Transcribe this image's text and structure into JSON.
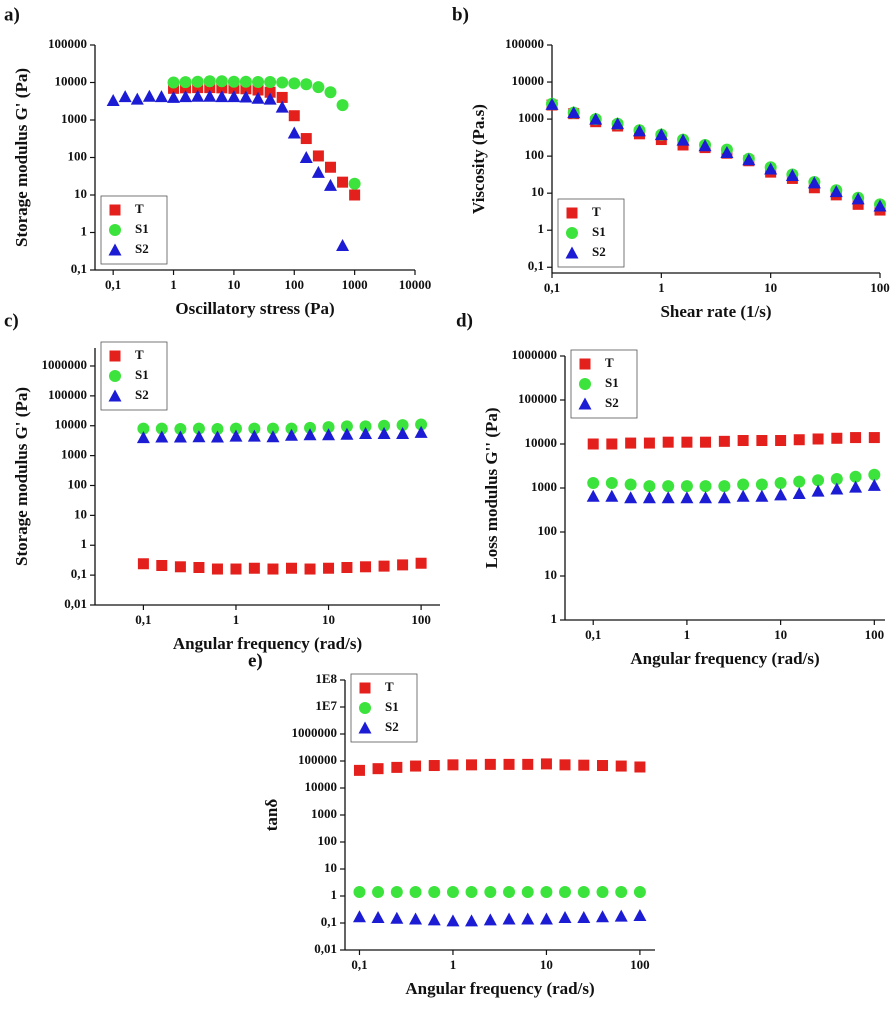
{
  "chart_data": [
    {
      "type": "scatter",
      "panel_label": "a)",
      "xlabel": "Oscillatory stress (Pa)",
      "ylabel": "Storage modulus G' (Pa)",
      "log_x": true,
      "log_y": true,
      "legend": "lower-left",
      "xlim": [
        0.05,
        10000
      ],
      "ylim": [
        0.1,
        100000
      ],
      "xticks": [
        {
          "value": 0.1,
          "label": "0,1"
        },
        1,
        10,
        100,
        1000,
        10000
      ],
      "yticks": [
        {
          "value": 0.1,
          "label": "0,1"
        },
        1,
        10,
        100,
        1000,
        10000,
        100000
      ],
      "series": [
        {
          "name": "T",
          "color": "#e3201c",
          "marker": "square",
          "x": [
            1,
            1.58,
            2.51,
            3.98,
            6.31,
            10,
            15.8,
            25.1,
            39.8,
            63.1,
            100,
            158,
            251,
            398,
            631,
            1000
          ],
          "values": [
            7000,
            7200,
            7300,
            7300,
            7200,
            7000,
            6800,
            6300,
            5500,
            4000,
            1300,
            320,
            110,
            55,
            22,
            10
          ]
        },
        {
          "name": "S1",
          "color": "#3ce33c",
          "marker": "circle",
          "x": [
            1,
            1.58,
            2.51,
            3.98,
            6.31,
            10,
            15.8,
            25.1,
            39.8,
            63.1,
            100,
            158,
            251,
            398,
            631,
            1000
          ],
          "values": [
            10000,
            10200,
            10500,
            10800,
            10800,
            10500,
            10500,
            10300,
            10300,
            10000,
            9500,
            9000,
            7500,
            5500,
            2500,
            20
          ]
        },
        {
          "name": "S2",
          "color": "#1c1cd4",
          "marker": "triangle",
          "x": [
            0.1,
            0.158,
            0.251,
            0.398,
            0.631,
            1,
            1.58,
            2.51,
            3.98,
            6.31,
            10,
            15.8,
            25.1,
            39.8,
            63.1,
            100,
            158,
            251,
            398,
            631
          ],
          "values": [
            3300,
            4200,
            3600,
            4300,
            4200,
            4000,
            4200,
            4300,
            4300,
            4200,
            4200,
            4100,
            3800,
            3600,
            2200,
            450,
            100,
            40,
            18,
            0.45
          ]
        }
      ]
    },
    {
      "type": "scatter",
      "panel_label": "b)",
      "xlabel": "Shear rate (1/s)",
      "ylabel": "Viscosity (Pa.s)",
      "log_x": true,
      "log_y": true,
      "legend": "lower-left",
      "xlim": [
        0.1,
        100
      ],
      "ylim": [
        0.07,
        100000
      ],
      "xticks": [
        {
          "value": 0.1,
          "label": "0,1"
        },
        1,
        10,
        100
      ],
      "yticks": [
        {
          "value": 0.1,
          "label": "0,1"
        },
        1,
        10,
        100,
        1000,
        10000,
        100000
      ],
      "series": [
        {
          "name": "T",
          "color": "#e3201c",
          "marker": "square",
          "x": [
            0.1,
            0.158,
            0.251,
            0.398,
            0.631,
            1,
            1.58,
            2.51,
            3.98,
            6.31,
            10,
            15.8,
            25.1,
            39.8,
            63.1,
            100
          ],
          "values": [
            2400,
            1400,
            850,
            650,
            400,
            280,
            200,
            170,
            120,
            75,
            37,
            25,
            14,
            9,
            5,
            3.5
          ]
        },
        {
          "name": "S1",
          "color": "#3ce33c",
          "marker": "circle",
          "x": [
            0.1,
            0.158,
            0.251,
            0.398,
            0.631,
            1,
            1.58,
            2.51,
            3.98,
            6.31,
            10,
            15.8,
            25.1,
            39.8,
            63.1,
            100
          ],
          "values": [
            2600,
            1500,
            1000,
            750,
            500,
            380,
            280,
            200,
            150,
            85,
            50,
            32,
            20,
            12,
            7.5,
            5
          ]
        },
        {
          "name": "S2",
          "color": "#1c1cd4",
          "marker": "triangle",
          "x": [
            0.1,
            0.158,
            0.251,
            0.398,
            0.631,
            1,
            1.58,
            2.51,
            3.98,
            6.31,
            10,
            15.8,
            25.1,
            39.8,
            63.1,
            100
          ],
          "values": [
            2500,
            1500,
            1000,
            750,
            480,
            380,
            270,
            190,
            125,
            80,
            45,
            30,
            19,
            11,
            7,
            4.5
          ]
        }
      ]
    },
    {
      "type": "scatter",
      "panel_label": "c)",
      "xlabel": "Angular frequency (rad/s)",
      "ylabel": "Storage modulus G' (Pa)",
      "log_x": true,
      "log_y": true,
      "legend": "upper-left",
      "xlim": [
        0.03,
        160
      ],
      "ylim": [
        0.01,
        4000000
      ],
      "xticks": [
        {
          "value": 0.1,
          "label": "0,1"
        },
        1,
        10,
        100
      ],
      "yticks": [
        {
          "value": 0.01,
          "label": "0,01"
        },
        {
          "value": 0.1,
          "label": "0,1"
        },
        1,
        10,
        100,
        1000,
        10000,
        100000,
        1000000
      ],
      "series": [
        {
          "name": "T",
          "color": "#e3201c",
          "marker": "square",
          "x": [
            0.1,
            0.158,
            0.251,
            0.398,
            0.631,
            1,
            1.58,
            2.51,
            3.98,
            6.31,
            10,
            15.8,
            25.1,
            39.8,
            63.1,
            100
          ],
          "values": [
            0.24,
            0.21,
            0.19,
            0.18,
            0.16,
            0.16,
            0.17,
            0.16,
            0.17,
            0.16,
            0.17,
            0.18,
            0.19,
            0.2,
            0.22,
            0.25
          ]
        },
        {
          "name": "S1",
          "color": "#3ce33c",
          "marker": "circle",
          "x": [
            0.1,
            0.158,
            0.251,
            0.398,
            0.631,
            1,
            1.58,
            2.51,
            3.98,
            6.31,
            10,
            15.8,
            25.1,
            39.8,
            63.1,
            100
          ],
          "values": [
            8000,
            8000,
            7800,
            8000,
            7800,
            8000,
            8000,
            8000,
            8000,
            8500,
            9000,
            9500,
            9500,
            10000,
            10500,
            11000
          ]
        },
        {
          "name": "S2",
          "color": "#1c1cd4",
          "marker": "triangle",
          "x": [
            0.1,
            0.158,
            0.251,
            0.398,
            0.631,
            1,
            1.58,
            2.51,
            3.98,
            6.31,
            10,
            15.8,
            25.1,
            39.8,
            63.1,
            100
          ],
          "values": [
            4000,
            4200,
            4200,
            4300,
            4200,
            4500,
            4500,
            4300,
            4800,
            5000,
            5000,
            5200,
            5500,
            5500,
            5500,
            6000
          ]
        }
      ]
    },
    {
      "type": "scatter",
      "panel_label": "d)",
      "xlabel": "Angular frequency (rad/s)",
      "ylabel": "Loss modulus G'' (Pa)",
      "log_x": true,
      "log_y": true,
      "legend": "upper-left",
      "xlim": [
        0.05,
        130
      ],
      "ylim": [
        1,
        1000000
      ],
      "xticks": [
        {
          "value": 0.1,
          "label": "0,1"
        },
        1,
        10,
        100
      ],
      "yticks": [
        1,
        10,
        100,
        1000,
        10000,
        100000,
        1000000
      ],
      "series": [
        {
          "name": "T",
          "color": "#e3201c",
          "marker": "square",
          "x": [
            0.1,
            0.158,
            0.251,
            0.398,
            0.631,
            1,
            1.58,
            2.51,
            3.98,
            6.31,
            10,
            15.8,
            25.1,
            39.8,
            63.1,
            100
          ],
          "values": [
            10000,
            10000,
            10500,
            10500,
            11000,
            11000,
            11000,
            11500,
            12000,
            12000,
            12000,
            12500,
            13000,
            13500,
            14000,
            14000
          ]
        },
        {
          "name": "S1",
          "color": "#3ce33c",
          "marker": "circle",
          "x": [
            0.1,
            0.158,
            0.251,
            0.398,
            0.631,
            1,
            1.58,
            2.51,
            3.98,
            6.31,
            10,
            15.8,
            25.1,
            39.8,
            63.1,
            100
          ],
          "values": [
            1300,
            1300,
            1200,
            1100,
            1100,
            1100,
            1100,
            1100,
            1200,
            1200,
            1300,
            1400,
            1500,
            1600,
            1800,
            2000
          ]
        },
        {
          "name": "S2",
          "color": "#1c1cd4",
          "marker": "triangle",
          "x": [
            0.1,
            0.158,
            0.251,
            0.398,
            0.631,
            1,
            1.58,
            2.51,
            3.98,
            6.31,
            10,
            15.8,
            25.1,
            39.8,
            63.1,
            100
          ],
          "values": [
            650,
            650,
            600,
            600,
            600,
            600,
            600,
            600,
            650,
            650,
            700,
            750,
            850,
            950,
            1050,
            1150
          ]
        }
      ]
    },
    {
      "type": "scatter",
      "panel_label": "e)",
      "xlabel": "Angular frequency (rad/s)",
      "ylabel": "tanδ",
      "log_x": true,
      "log_y": true,
      "legend": "upper-left",
      "xlim": [
        0.07,
        145
      ],
      "ylim": [
        0.01,
        100000000
      ],
      "xticks": [
        {
          "value": 0.1,
          "label": "0,1"
        },
        1,
        10,
        100
      ],
      "yticks": [
        {
          "value": 0.01,
          "label": "0,01"
        },
        {
          "value": 0.1,
          "label": "0,1"
        },
        1,
        10,
        100,
        1000,
        10000,
        100000,
        1000000,
        {
          "value": 10000000,
          "label": "1E7"
        },
        {
          "value": 100000000,
          "label": "1E8"
        }
      ],
      "series": [
        {
          "name": "T",
          "color": "#e3201c",
          "marker": "square",
          "x": [
            0.1,
            0.158,
            0.251,
            0.398,
            0.631,
            1,
            1.58,
            2.51,
            3.98,
            6.31,
            10,
            15.8,
            25.1,
            39.8,
            63.1,
            100
          ],
          "values": [
            45000,
            52000,
            58000,
            65000,
            68000,
            72000,
            72000,
            75000,
            75000,
            75000,
            78000,
            72000,
            70000,
            68000,
            65000,
            60000
          ]
        },
        {
          "name": "S1",
          "color": "#3ce33c",
          "marker": "circle",
          "x": [
            0.1,
            0.158,
            0.251,
            0.398,
            0.631,
            1,
            1.58,
            2.51,
            3.98,
            6.31,
            10,
            15.8,
            25.1,
            39.8,
            63.1,
            100
          ],
          "values": [
            1.4,
            1.4,
            1.4,
            1.4,
            1.4,
            1.4,
            1.4,
            1.4,
            1.4,
            1.4,
            1.4,
            1.4,
            1.4,
            1.4,
            1.4,
            1.4
          ]
        },
        {
          "name": "S2",
          "color": "#1c1cd4",
          "marker": "triangle",
          "x": [
            0.1,
            0.158,
            0.251,
            0.398,
            0.631,
            1,
            1.58,
            2.51,
            3.98,
            6.31,
            10,
            15.8,
            25.1,
            39.8,
            63.1,
            100
          ],
          "values": [
            0.17,
            0.16,
            0.15,
            0.14,
            0.13,
            0.12,
            0.12,
            0.13,
            0.14,
            0.14,
            0.14,
            0.16,
            0.16,
            0.17,
            0.18,
            0.19
          ]
        }
      ]
    }
  ]
}
